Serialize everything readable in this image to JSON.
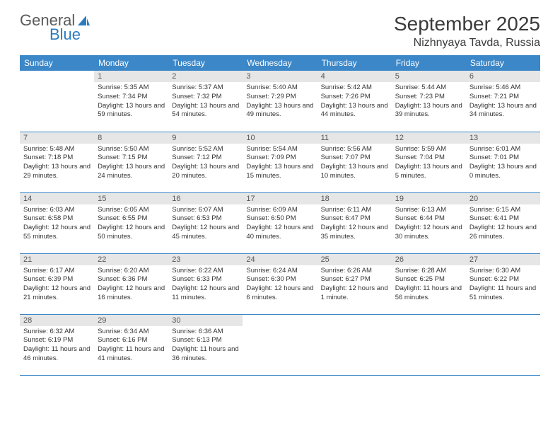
{
  "logo": {
    "text1": "General",
    "text2": "Blue"
  },
  "title": "September 2025",
  "location": "Nizhnyaya Tavda, Russia",
  "header_bg": "#3b87c8",
  "weekdays": [
    "Sunday",
    "Monday",
    "Tuesday",
    "Wednesday",
    "Thursday",
    "Friday",
    "Saturday"
  ],
  "weeks": [
    [
      null,
      {
        "n": "1",
        "sr": "5:35 AM",
        "ss": "7:34 PM",
        "dl": "13 hours and 59 minutes."
      },
      {
        "n": "2",
        "sr": "5:37 AM",
        "ss": "7:32 PM",
        "dl": "13 hours and 54 minutes."
      },
      {
        "n": "3",
        "sr": "5:40 AM",
        "ss": "7:29 PM",
        "dl": "13 hours and 49 minutes."
      },
      {
        "n": "4",
        "sr": "5:42 AM",
        "ss": "7:26 PM",
        "dl": "13 hours and 44 minutes."
      },
      {
        "n": "5",
        "sr": "5:44 AM",
        "ss": "7:23 PM",
        "dl": "13 hours and 39 minutes."
      },
      {
        "n": "6",
        "sr": "5:46 AM",
        "ss": "7:21 PM",
        "dl": "13 hours and 34 minutes."
      }
    ],
    [
      {
        "n": "7",
        "sr": "5:48 AM",
        "ss": "7:18 PM",
        "dl": "13 hours and 29 minutes."
      },
      {
        "n": "8",
        "sr": "5:50 AM",
        "ss": "7:15 PM",
        "dl": "13 hours and 24 minutes."
      },
      {
        "n": "9",
        "sr": "5:52 AM",
        "ss": "7:12 PM",
        "dl": "13 hours and 20 minutes."
      },
      {
        "n": "10",
        "sr": "5:54 AM",
        "ss": "7:09 PM",
        "dl": "13 hours and 15 minutes."
      },
      {
        "n": "11",
        "sr": "5:56 AM",
        "ss": "7:07 PM",
        "dl": "13 hours and 10 minutes."
      },
      {
        "n": "12",
        "sr": "5:59 AM",
        "ss": "7:04 PM",
        "dl": "13 hours and 5 minutes."
      },
      {
        "n": "13",
        "sr": "6:01 AM",
        "ss": "7:01 PM",
        "dl": "13 hours and 0 minutes."
      }
    ],
    [
      {
        "n": "14",
        "sr": "6:03 AM",
        "ss": "6:58 PM",
        "dl": "12 hours and 55 minutes."
      },
      {
        "n": "15",
        "sr": "6:05 AM",
        "ss": "6:55 PM",
        "dl": "12 hours and 50 minutes."
      },
      {
        "n": "16",
        "sr": "6:07 AM",
        "ss": "6:53 PM",
        "dl": "12 hours and 45 minutes."
      },
      {
        "n": "17",
        "sr": "6:09 AM",
        "ss": "6:50 PM",
        "dl": "12 hours and 40 minutes."
      },
      {
        "n": "18",
        "sr": "6:11 AM",
        "ss": "6:47 PM",
        "dl": "12 hours and 35 minutes."
      },
      {
        "n": "19",
        "sr": "6:13 AM",
        "ss": "6:44 PM",
        "dl": "12 hours and 30 minutes."
      },
      {
        "n": "20",
        "sr": "6:15 AM",
        "ss": "6:41 PM",
        "dl": "12 hours and 26 minutes."
      }
    ],
    [
      {
        "n": "21",
        "sr": "6:17 AM",
        "ss": "6:39 PM",
        "dl": "12 hours and 21 minutes."
      },
      {
        "n": "22",
        "sr": "6:20 AM",
        "ss": "6:36 PM",
        "dl": "12 hours and 16 minutes."
      },
      {
        "n": "23",
        "sr": "6:22 AM",
        "ss": "6:33 PM",
        "dl": "12 hours and 11 minutes."
      },
      {
        "n": "24",
        "sr": "6:24 AM",
        "ss": "6:30 PM",
        "dl": "12 hours and 6 minutes."
      },
      {
        "n": "25",
        "sr": "6:26 AM",
        "ss": "6:27 PM",
        "dl": "12 hours and 1 minute."
      },
      {
        "n": "26",
        "sr": "6:28 AM",
        "ss": "6:25 PM",
        "dl": "11 hours and 56 minutes."
      },
      {
        "n": "27",
        "sr": "6:30 AM",
        "ss": "6:22 PM",
        "dl": "11 hours and 51 minutes."
      }
    ],
    [
      {
        "n": "28",
        "sr": "6:32 AM",
        "ss": "6:19 PM",
        "dl": "11 hours and 46 minutes."
      },
      {
        "n": "29",
        "sr": "6:34 AM",
        "ss": "6:16 PM",
        "dl": "11 hours and 41 minutes."
      },
      {
        "n": "30",
        "sr": "6:36 AM",
        "ss": "6:13 PM",
        "dl": "11 hours and 36 minutes."
      },
      null,
      null,
      null,
      null
    ]
  ],
  "labels": {
    "sunrise": "Sunrise:",
    "sunset": "Sunset:",
    "daylight": "Daylight:"
  }
}
